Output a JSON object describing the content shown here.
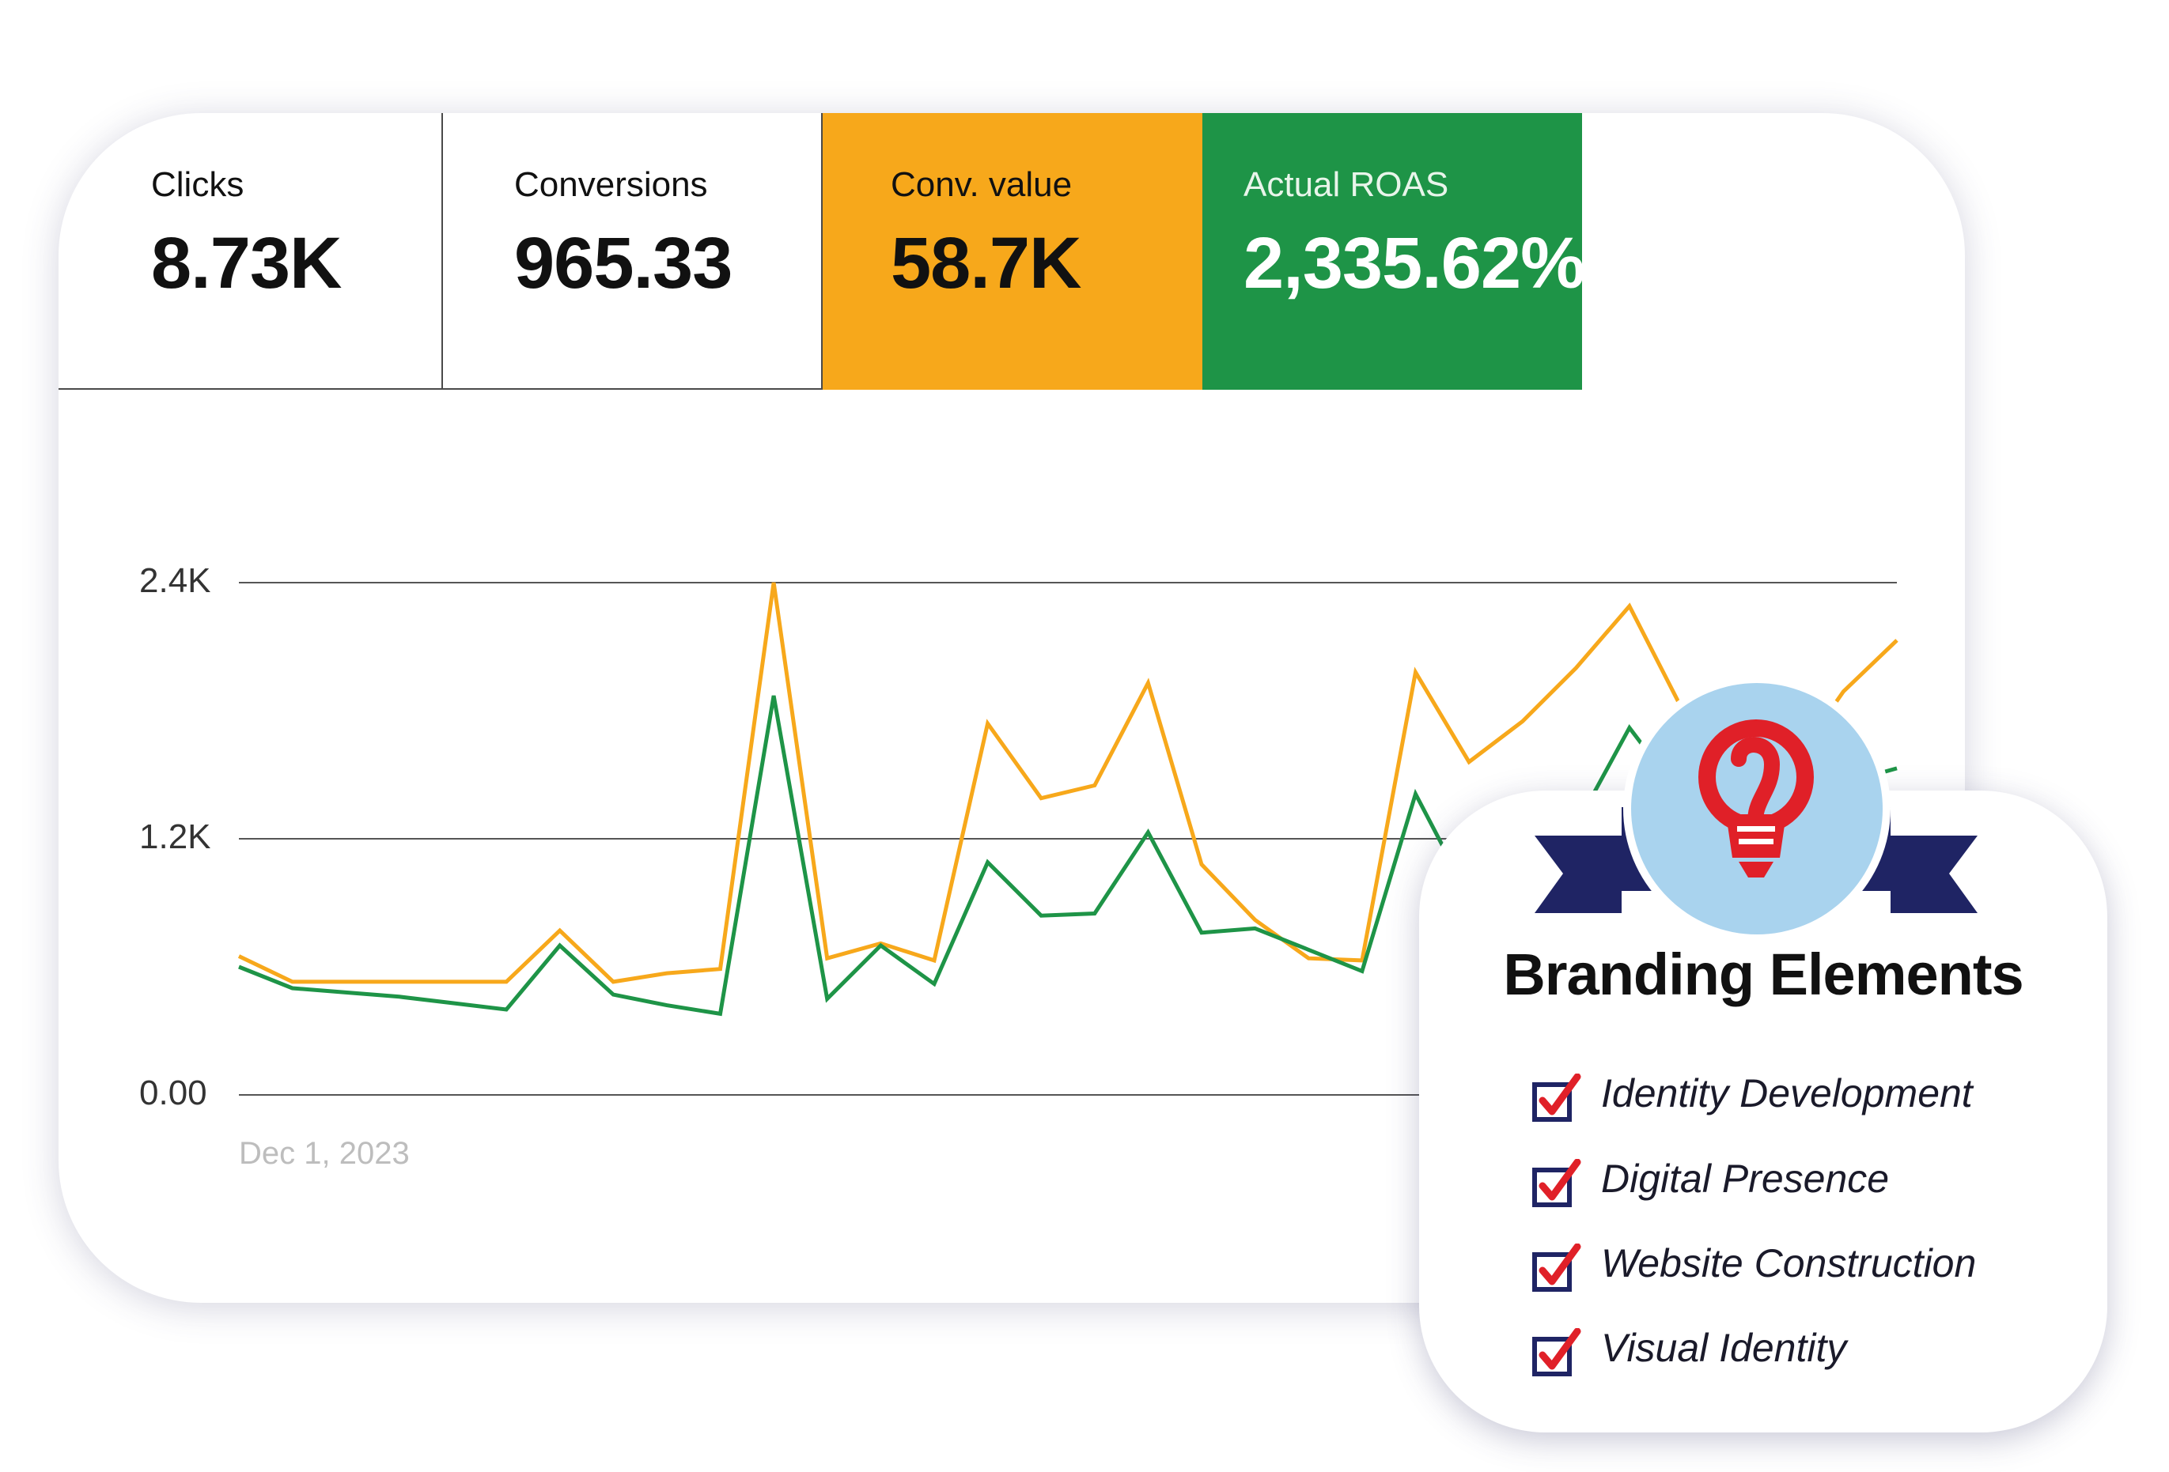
{
  "metrics": {
    "clicks": {
      "label": "Clicks",
      "value": "8.73K"
    },
    "conversions": {
      "label": "Conversions",
      "value": "965.33"
    },
    "conv_value": {
      "label": "Conv. value",
      "value": "58.7K",
      "color": "#F7A81B"
    },
    "roas": {
      "label": "Actual ROAS",
      "value": "2,335.62%",
      "color": "#1E9447"
    }
  },
  "chart_data": {
    "type": "line",
    "x_start_label": "Dec 1, 2023",
    "y_tick_labels": [
      "2.4K",
      "1.2K",
      "0.00"
    ],
    "ylim": [
      0,
      2400
    ],
    "grid": true,
    "series": [
      {
        "color": "#F7A81B",
        "values": [
          650,
          530,
          530,
          530,
          530,
          530,
          770,
          530,
          570,
          590,
          2400,
          640,
          710,
          630,
          1740,
          1390,
          1450,
          1930,
          1080,
          820,
          640,
          630,
          1980,
          1560,
          1750,
          2000,
          2290,
          1800,
          1860,
          1530,
          1890,
          2130
        ]
      },
      {
        "color": "#1E9447",
        "values": [
          600,
          500,
          480,
          460,
          430,
          400,
          700,
          470,
          420,
          380,
          1870,
          450,
          700,
          520,
          1090,
          840,
          850,
          1230,
          760,
          780,
          680,
          580,
          1410,
          930,
          1110,
          1260,
          1720,
          1390,
          1500,
          1240,
          1460,
          1530
        ]
      }
    ]
  },
  "brand": {
    "title": "Branding Elements",
    "items": [
      "Identity Development",
      "Digital Presence",
      "Website Construction",
      "Visual Identity"
    ],
    "ribbon_color": "#1F2464",
    "circle_color": "#A9D3EE",
    "icon_color": "#E02028",
    "check_color": "#E02028"
  }
}
